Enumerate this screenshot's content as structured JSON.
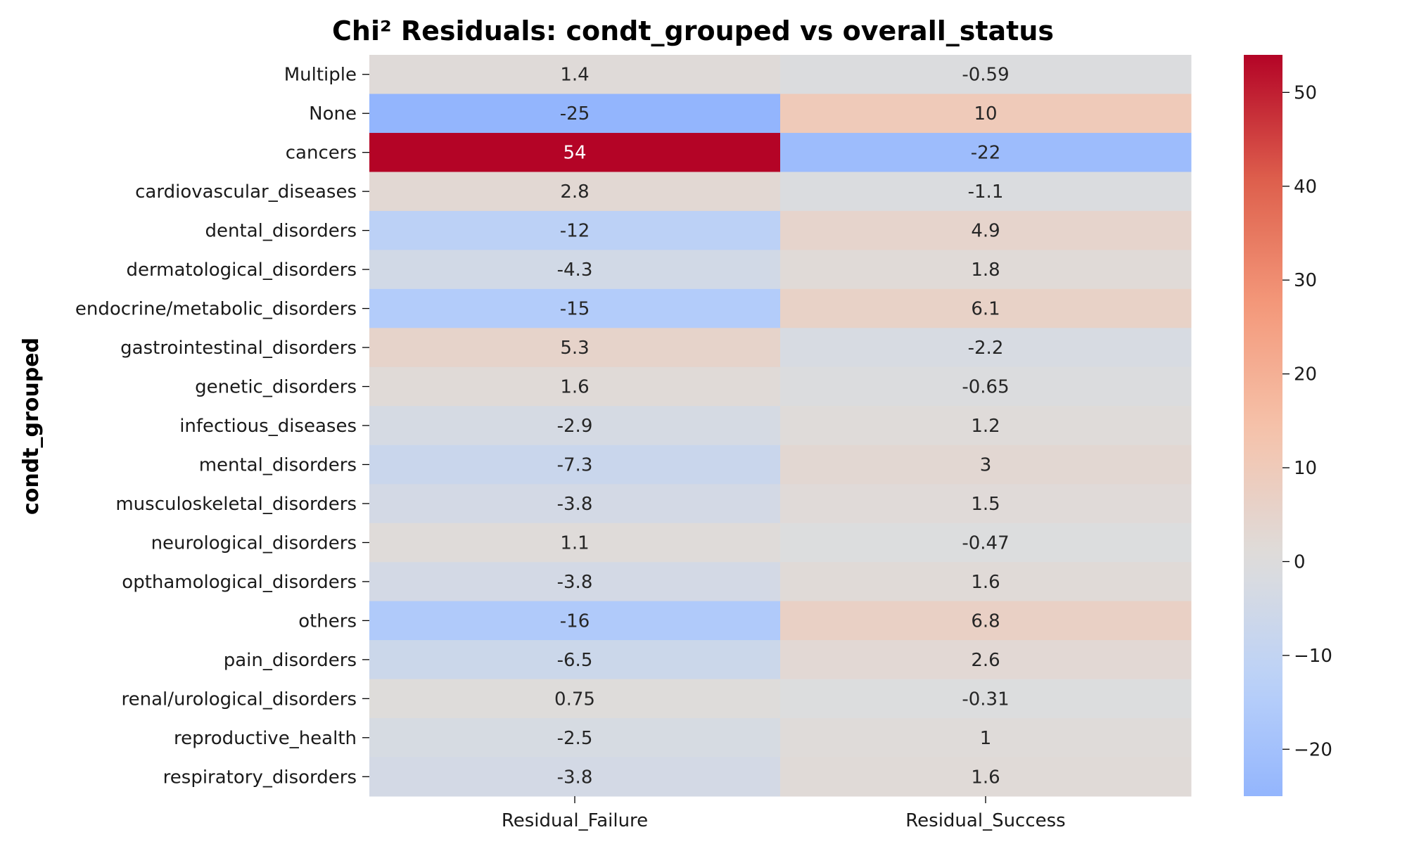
{
  "chart_data": {
    "type": "heatmap",
    "title": "Chi² Residuals: condt_grouped vs overall_status",
    "xlabel": "",
    "ylabel": "condt_grouped",
    "columns": [
      "Residual_Failure",
      "Residual_Success"
    ],
    "rows": [
      "Multiple",
      "None",
      "cancers",
      "cardiovascular_diseases",
      "dental_disorders",
      "dermatological_disorders",
      "endocrine/metabolic_disorders",
      "gastrointestinal_disorders",
      "genetic_disorders",
      "infectious_diseases",
      "mental_disorders",
      "musculoskeletal_disorders",
      "neurological_disorders",
      "opthamological_disorders",
      "others",
      "pain_disorders",
      "renal/urological_disorders",
      "reproductive_health",
      "respiratory_disorders"
    ],
    "values": [
      [
        1.4,
        -0.59
      ],
      [
        -25,
        10
      ],
      [
        54,
        -22
      ],
      [
        2.8,
        -1.1
      ],
      [
        -12,
        4.9
      ],
      [
        -4.3,
        1.8
      ],
      [
        -15,
        6.1
      ],
      [
        5.3,
        -2.2
      ],
      [
        1.6,
        -0.65
      ],
      [
        -2.9,
        1.2
      ],
      [
        -7.3,
        3
      ],
      [
        -3.8,
        1.5
      ],
      [
        1.1,
        -0.47
      ],
      [
        -3.8,
        1.6
      ],
      [
        -16,
        6.8
      ],
      [
        -6.5,
        2.6
      ],
      [
        0.75,
        -0.31
      ],
      [
        -2.5,
        1
      ],
      [
        -3.8,
        1.6
      ]
    ],
    "labels": [
      [
        "1.4",
        "-0.59"
      ],
      [
        "-25",
        "10"
      ],
      [
        "54",
        "-22"
      ],
      [
        "2.8",
        "-1.1"
      ],
      [
        "-12",
        "4.9"
      ],
      [
        "-4.3",
        "1.8"
      ],
      [
        "-15",
        "6.1"
      ],
      [
        "5.3",
        "-2.2"
      ],
      [
        "1.6",
        "-0.65"
      ],
      [
        "-2.9",
        "1.2"
      ],
      [
        "-7.3",
        "3"
      ],
      [
        "-3.8",
        "1.5"
      ],
      [
        "1.1",
        "-0.47"
      ],
      [
        "-3.8",
        "1.6"
      ],
      [
        "-16",
        "6.8"
      ],
      [
        "-6.5",
        "2.6"
      ],
      [
        "0.75",
        "-0.31"
      ],
      [
        "-2.5",
        "1"
      ],
      [
        "-3.8",
        "1.6"
      ]
    ],
    "colormap": "coolwarm",
    "center": 0,
    "vmin": -25,
    "vmax": 54,
    "colorbar": {
      "ticks": [
        -20,
        -10,
        0,
        10,
        20,
        30,
        40,
        50
      ],
      "tick_labels": [
        "−20",
        "−10",
        "0",
        "10",
        "20",
        "30",
        "40",
        "50"
      ]
    },
    "grid": false,
    "legend": "colorbar-right"
  }
}
